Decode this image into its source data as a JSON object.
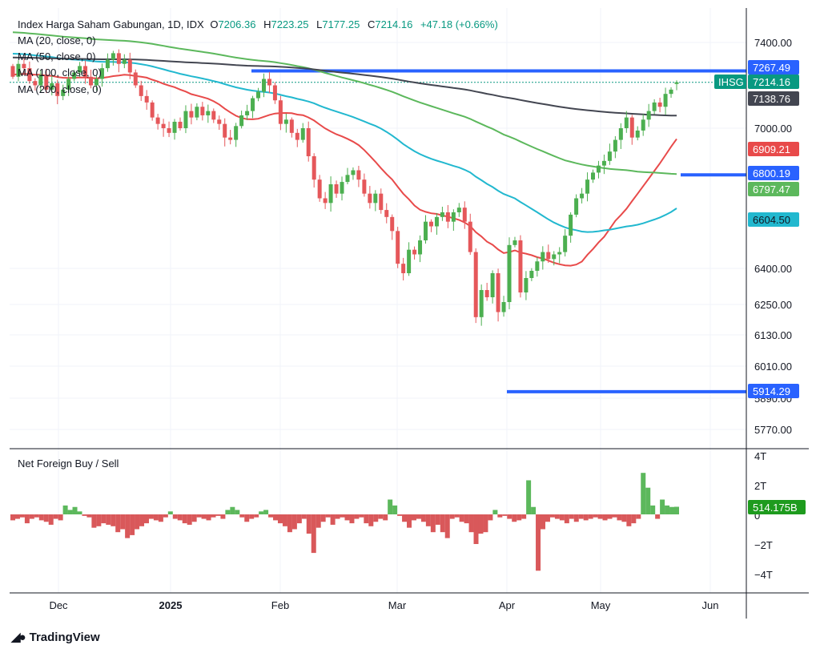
{
  "legend": {
    "title": "Index Harga Saham Gabungan, 1D, IDX",
    "open_label": "O",
    "open": "7206.36",
    "high_label": "H",
    "high": "7223.25",
    "low_label": "L",
    "low": "7177.25",
    "close_label": "C",
    "close": "7214.16",
    "change": "+47.18 (+0.66%)",
    "ma20": "MA (20, close, 0)",
    "ma50": "MA (50, close, 0)",
    "ma100": "MA (100, close, 0)",
    "ma200": "MA (200, close, 0)"
  },
  "price_axis": {
    "ticks": [
      "7400.00",
      "7000.00",
      "6400.00",
      "6250.00",
      "6130.00",
      "6010.00",
      "5890.00",
      "5770.00"
    ],
    "labels": {
      "resistance": "7267.49",
      "ihsg_name": "IHSG",
      "ihsg_value": "7214.16",
      "ma200": "7138.76",
      "ma20": "6909.21",
      "support_mid": "6800.19",
      "ma100": "6797.47",
      "ma50": "6604.50",
      "support_low": "5914.29"
    }
  },
  "foreign_panel": {
    "title": "Net Foreign Buy / Sell",
    "ticks": [
      "4T",
      "2T",
      "0",
      "−2T",
      "−4T"
    ],
    "last_label": "514.175B"
  },
  "time_axis": [
    "Dec",
    "2025",
    "Feb",
    "Mar",
    "Apr",
    "May",
    "Jun"
  ],
  "brand": "TradingView",
  "colors": {
    "up": "#4caf50",
    "down": "#e5575a",
    "ma20": "#e84a4a",
    "ma50": "#22b8cf",
    "ma100": "#5cb85c",
    "ma200": "#434651",
    "level": "#2962ff",
    "foreign_buy": "#5cb85c",
    "foreign_sell": "#d9585a",
    "ihsg": "#089981"
  },
  "chart_data": {
    "type": "candlestick",
    "symbol": "IHSG",
    "x": [
      "Dec",
      "2025",
      "Feb",
      "Mar",
      "Apr",
      "May",
      "Jun"
    ],
    "last_ohlc": {
      "open": 7206.36,
      "high": 7223.25,
      "low": 7177.25,
      "close": 7214.16
    },
    "close_approx": [
      7240,
      7300,
      7280,
      7220,
      7200,
      7250,
      7180,
      7210,
      7150,
      7180,
      7230,
      7260,
      7290,
      7240,
      7200,
      7230,
      7280,
      7320,
      7350,
      7300,
      7320,
      7260,
      7200,
      7150,
      7120,
      7050,
      7020,
      7000,
      6980,
      7030,
      7000,
      7080,
      7050,
      7100,
      7060,
      7080,
      7040,
      7020,
      6960,
      6950,
      7010,
      7060,
      7080,
      7140,
      7170,
      7230,
      7200,
      7130,
      7020,
      7040,
      6980,
      6950,
      7000,
      6880,
      6780,
      6700,
      6680,
      6760,
      6720,
      6770,
      6800,
      6820,
      6780,
      6720,
      6680,
      6720,
      6650,
      6620,
      6560,
      6420,
      6380,
      6480,
      6460,
      6520,
      6600,
      6580,
      6620,
      6640,
      6600,
      6640,
      6660,
      6600,
      6470,
      6200,
      6310,
      6280,
      6380,
      6220,
      6260,
      6500,
      6520,
      6300,
      6360,
      6390,
      6430,
      6470,
      6440,
      6460,
      6470,
      6540,
      6630,
      6700,
      6720,
      6780,
      6810,
      6840,
      6860,
      6900,
      6950,
      7000,
      7050,
      6960,
      6990,
      7040,
      7080,
      7120,
      7100,
      7160,
      7180,
      7214.16
    ],
    "series": [
      {
        "name": "MA (20, close, 0)",
        "last": 6909.21
      },
      {
        "name": "MA (50, close, 0)",
        "last": 6604.5
      },
      {
        "name": "MA (100, close, 0)",
        "last": 6797.47
      },
      {
        "name": "MA (200, close, 0)",
        "last": 7138.76
      }
    ],
    "levels": [
      7267.49,
      6800.19,
      5914.29
    ],
    "foreign_net_trillions": [
      -0.4,
      -0.3,
      -0.2,
      -0.6,
      -0.3,
      -0.2,
      -0.4,
      -0.5,
      -0.7,
      -0.3,
      -0.4,
      0.6,
      0.3,
      0.5,
      0.2,
      -0.1,
      -0.2,
      -0.9,
      -0.8,
      -0.6,
      -0.7,
      -0.8,
      -1.2,
      -1.0,
      -1.6,
      -1.4,
      -1.0,
      -0.8,
      -0.6,
      -0.3,
      -0.4,
      -0.5,
      -0.2,
      0.2,
      -0.3,
      -0.4,
      -0.6,
      -0.7,
      -0.5,
      -0.2,
      -0.3,
      -0.4,
      -0.2,
      -0.1,
      -0.3,
      0.3,
      0.5,
      0.3,
      -0.2,
      -0.5,
      -0.3,
      -0.2,
      0.2,
      0.3,
      -0.2,
      -0.4,
      -0.6,
      -0.8,
      -1.2,
      -1.0,
      -0.6,
      -0.3,
      -1.3,
      -2.6,
      -0.9,
      -0.5,
      -0.2,
      -0.7,
      -0.3,
      -0.2,
      -0.4,
      -0.6,
      -0.3,
      -0.2,
      -0.6,
      -0.8,
      -0.5,
      -0.3,
      -0.4,
      1.0,
      0.6,
      -0.1,
      -0.5,
      -0.9,
      -0.4,
      -0.3,
      -0.5,
      -0.8,
      -1.2,
      -0.7,
      -1.2,
      -1.6,
      -0.3,
      -0.2,
      -0.5,
      -0.6,
      -1.2,
      -2.0,
      -1.3,
      -1.2,
      -0.4,
      0.3,
      -0.2,
      -0.1,
      -0.3,
      -0.5,
      -0.4,
      -0.3,
      2.3,
      0.5,
      -3.8,
      -1.0,
      -0.5,
      -0.2,
      -0.3,
      -0.4,
      -0.6,
      -0.3,
      -0.5,
      -0.3,
      -0.4,
      -0.3,
      -0.2,
      -0.3,
      -0.4,
      -0.3,
      -0.2,
      -0.4,
      -0.5,
      -0.8,
      -0.6,
      -0.3,
      2.8,
      1.8,
      0.6,
      -0.3,
      1.0,
      0.6,
      0.5,
      0.514
    ]
  }
}
